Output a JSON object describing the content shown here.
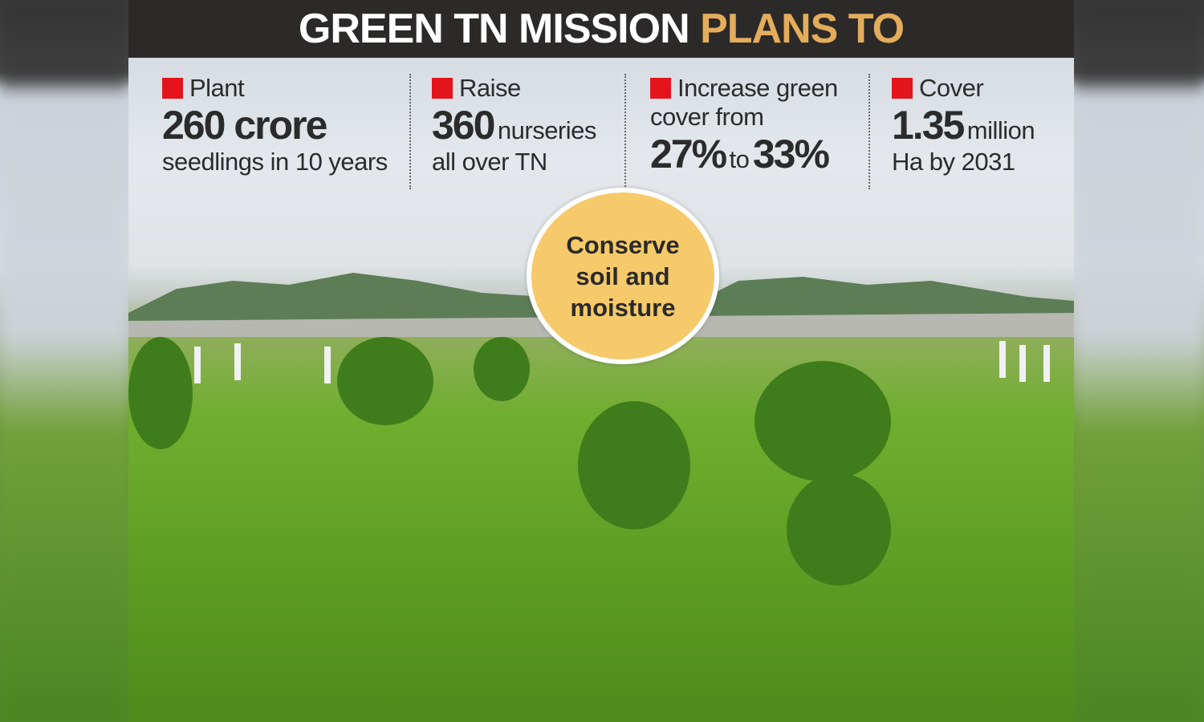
{
  "header": {
    "title_white": "GREEN TN MISSION",
    "title_accent": "PLANS TO"
  },
  "items": [
    {
      "label": "Plant",
      "big": "260 crore",
      "rest": "",
      "sub": "seedlings in 10 years"
    },
    {
      "label": "Raise",
      "big": "360",
      "rest": "nurseries",
      "sub": "all over TN"
    },
    {
      "label": "Increase green",
      "line2": "cover from",
      "big1": "27%",
      "to": "to",
      "big2": "33%"
    },
    {
      "label": "Cover",
      "big": "1.35",
      "rest": "million",
      "sub": "Ha by 2031"
    }
  ],
  "callout": "Conserve soil and moisture",
  "colors": {
    "header_bg": "#2b2a29",
    "accent": "#e3ad5c",
    "bullet": "#e3141b",
    "callout": "#f6c96a"
  }
}
